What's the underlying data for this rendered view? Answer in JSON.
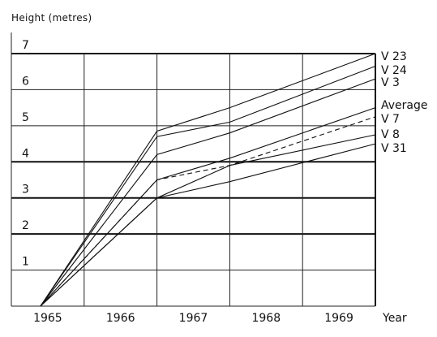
{
  "chart_data": {
    "type": "line",
    "ylabel": "Height (metres)",
    "xlabel": "Year",
    "ylim": [
      0,
      7
    ],
    "xlim": [
      1964.5,
      1969.5
    ],
    "x_tick_labels": [
      {
        "label": "1965",
        "x": 1965
      },
      {
        "label": "1966",
        "x": 1966
      },
      {
        "label": "1967",
        "x": 1967
      },
      {
        "label": "1968",
        "x": 1968
      },
      {
        "label": "1969",
        "x": 1969
      }
    ],
    "y_tick_labels": [
      "1",
      "2",
      "3",
      "4",
      "5",
      "6",
      "7"
    ],
    "y_ticks": [
      1,
      2,
      3,
      4,
      5,
      6,
      7
    ],
    "x_grid": [
      1965.5,
      1966.5,
      1967.5,
      1968.5,
      1969.5
    ],
    "series": [
      {
        "name": "V 23",
        "dashed": false,
        "x": [
          1964.9,
          1966.5,
          1967.5,
          1969.5
        ],
        "y": [
          0,
          4.85,
          5.5,
          7.0
        ]
      },
      {
        "name": "V 24",
        "dashed": false,
        "x": [
          1964.9,
          1966.5,
          1967.5,
          1969.5
        ],
        "y": [
          0,
          4.7,
          5.1,
          6.65
        ]
      },
      {
        "name": "V 3",
        "dashed": false,
        "x": [
          1964.9,
          1966.5,
          1967.5,
          1969.5
        ],
        "y": [
          0,
          4.2,
          4.8,
          6.3
        ]
      },
      {
        "name": "Average",
        "dashed": false,
        "x": [
          1964.9,
          1966.5,
          1967.5,
          1969.5
        ],
        "y": [
          0,
          3.5,
          4.1,
          5.5
        ]
      },
      {
        "name": "V 7",
        "dashed": true,
        "x": [
          1964.9,
          1966.5,
          1967.5,
          1969.5
        ],
        "y": [
          0,
          3.5,
          3.9,
          5.25
        ]
      },
      {
        "name": "V 8",
        "dashed": false,
        "x": [
          1964.9,
          1966.5,
          1967.5,
          1969.5
        ],
        "y": [
          0,
          3.0,
          3.9,
          4.75
        ]
      },
      {
        "name": "V 31",
        "dashed": false,
        "x": [
          1964.9,
          1966.5,
          1967.5,
          1969.5
        ],
        "y": [
          0,
          3.0,
          3.45,
          4.5
        ]
      }
    ],
    "grid": true,
    "legend": "labels at right end of lines"
  }
}
